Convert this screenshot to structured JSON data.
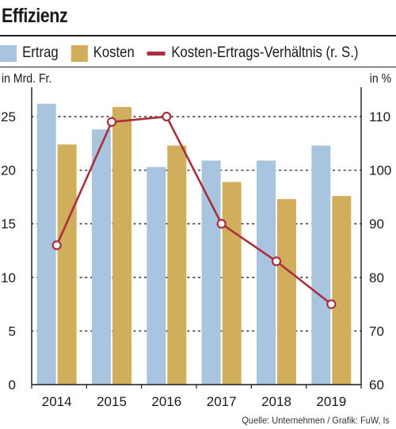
{
  "title": "Effizienz",
  "source": "Quelle: Unternehmen / Grafik: FuW, ls",
  "colors": {
    "ertrag": "#a9c4df",
    "kosten": "#d1ae5c",
    "ratio": "#a8303c",
    "axis": "#1a1a1a",
    "grid": "#333333"
  },
  "chart_data": {
    "type": "bar",
    "categories": [
      "2014",
      "2015",
      "2016",
      "2017",
      "2018",
      "2019"
    ],
    "series": [
      {
        "name": "Ertrag",
        "type": "bar",
        "axis": "left",
        "values": [
          26.2,
          23.8,
          20.3,
          20.9,
          20.9,
          22.3
        ]
      },
      {
        "name": "Kosten",
        "type": "bar",
        "axis": "left",
        "values": [
          22.4,
          25.9,
          22.3,
          18.9,
          17.3,
          17.6
        ]
      },
      {
        "name": "Kosten-Ertrags-Verhältnis (r. S.)",
        "type": "line",
        "axis": "right",
        "values": [
          86,
          109,
          110,
          90,
          83,
          75
        ]
      }
    ],
    "ylabel_left": "in Mrd. Fr.",
    "ylabel_right": "in %",
    "ylim_left": [
      0,
      27
    ],
    "ylim_right": [
      60,
      114
    ],
    "yticks_left": [
      "0",
      "5",
      "10",
      "15",
      "20",
      "25"
    ],
    "yticks_right": [
      "60",
      "70",
      "80",
      "90",
      "100",
      "110"
    ],
    "grid": true,
    "legend_position": "top"
  }
}
